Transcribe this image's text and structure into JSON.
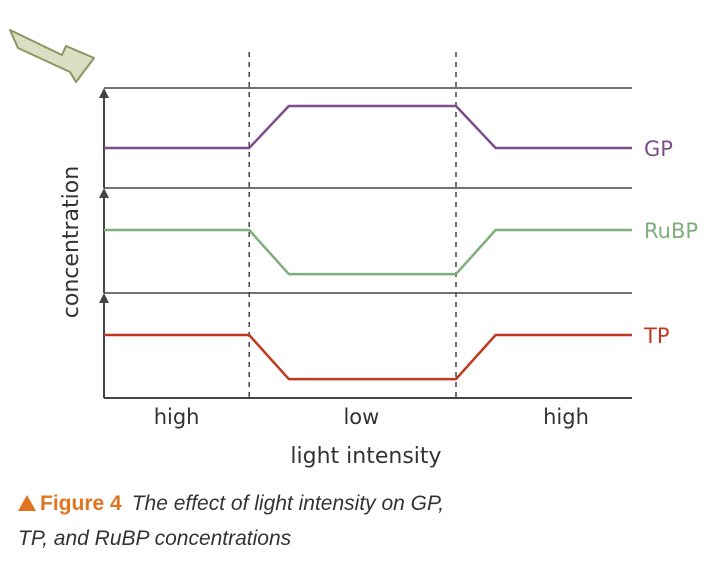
{
  "chart_data": {
    "type": "line",
    "title": "",
    "xlabel": "light intensity",
    "ylabel": "concentration",
    "x_regions": [
      "high",
      "low",
      "high"
    ],
    "x": [
      0,
      0.33,
      0.42,
      0.8,
      0.89,
      1.2
    ],
    "series": [
      {
        "name": "GP",
        "color": "#7a4f8a",
        "values": [
          0.4,
          0.4,
          0.82,
          0.82,
          0.4,
          0.4
        ]
      },
      {
        "name": "RuBP",
        "color": "#7fae7c",
        "values": [
          0.6,
          0.6,
          0.18,
          0.18,
          0.6,
          0.6
        ]
      },
      {
        "name": "TP",
        "color": "#c0391f",
        "values": [
          0.6,
          0.6,
          0.18,
          0.18,
          0.6,
          0.6
        ]
      }
    ],
    "grid": "one panel per series",
    "legend": "right of each line"
  },
  "caption": {
    "label": "Figure 4",
    "text": "The effect of light intensity on GP,",
    "text_line2": "TP, and RuBP concentrations"
  },
  "colors": {
    "axis": "#444444",
    "divider": "#444444",
    "label_text": "#333333",
    "accent": "#e0741f",
    "pointer_arrow": "#9aa56f"
  },
  "icons": {
    "pointer": "arrow-pointer-icon"
  }
}
